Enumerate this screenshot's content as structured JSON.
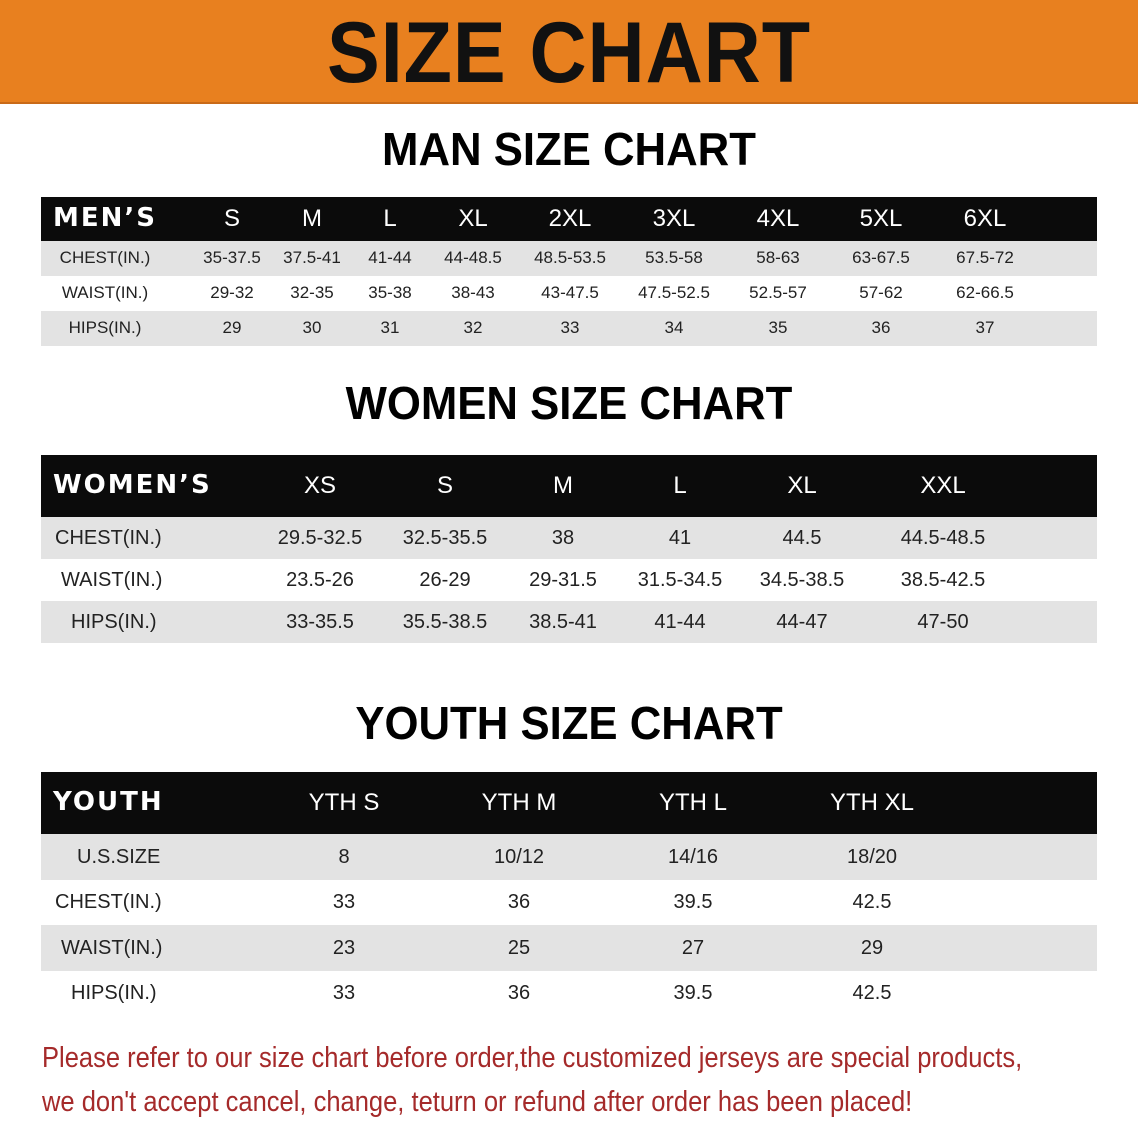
{
  "banner": {
    "title": "SIZE CHART",
    "color": "#e8801f"
  },
  "men": {
    "title": "MAN SIZE CHART",
    "header_label": "MEN’S",
    "sizes": [
      "S",
      "M",
      "L",
      "XL",
      "2XL",
      "3XL",
      "4XL",
      "5XL",
      "6XL"
    ],
    "rows": [
      {
        "label": "CHEST(IN.)",
        "values": [
          "35-37.5",
          "37.5-41",
          "41-44",
          "44-48.5",
          "48.5-53.5",
          "53.5-58",
          "58-63",
          "63-67.5",
          "67.5-72"
        ]
      },
      {
        "label": "WAIST(IN.)",
        "values": [
          "29-32",
          "32-35",
          "35-38",
          "38-43",
          "43-47.5",
          "47.5-52.5",
          "52.5-57",
          "57-62",
          "62-66.5"
        ]
      },
      {
        "label": "HIPS(IN.)",
        "values": [
          "29",
          "30",
          "31",
          "32",
          "33",
          "34",
          "35",
          "36",
          "37"
        ]
      }
    ]
  },
  "women": {
    "title": "WOMEN SIZE CHART",
    "header_label": "WOMEN’S",
    "sizes": [
      "XS",
      "S",
      "M",
      "L",
      "XL",
      "XXL"
    ],
    "rows": [
      {
        "label": "CHEST(IN.)",
        "values": [
          "29.5-32.5",
          "32.5-35.5",
          "38",
          "41",
          "44.5",
          "44.5-48.5"
        ]
      },
      {
        "label": "WAIST(IN.)",
        "values": [
          "23.5-26",
          "26-29",
          "29-31.5",
          "31.5-34.5",
          "34.5-38.5",
          "38.5-42.5"
        ]
      },
      {
        "label": "HIPS(IN.)",
        "values": [
          "33-35.5",
          "35.5-38.5",
          "38.5-41",
          "41-44",
          "44-47",
          "47-50"
        ]
      }
    ]
  },
  "youth": {
    "title": "YOUTH SIZE CHART",
    "header_label": "YOUTH",
    "sizes": [
      "YTH S",
      "YTH M",
      "YTH L",
      "YTH XL"
    ],
    "rows": [
      {
        "label": "U.S.SIZE",
        "values": [
          "8",
          "10/12",
          "14/16",
          "18/20"
        ]
      },
      {
        "label": "CHEST(IN.)",
        "values": [
          "33",
          "36",
          "39.5",
          "42.5"
        ]
      },
      {
        "label": "WAIST(IN.)",
        "values": [
          "23",
          "25",
          "27",
          "29"
        ]
      },
      {
        "label": "HIPS(IN.)",
        "values": [
          "33",
          "36",
          "39.5",
          "42.5"
        ]
      }
    ]
  },
  "footer": {
    "line1": "Please refer to our size chart before order,the customized jerseys are special products,",
    "line2": "we don't accept cancel, change, teturn or refund after order has been placed!",
    "color": "#a52a2a"
  }
}
